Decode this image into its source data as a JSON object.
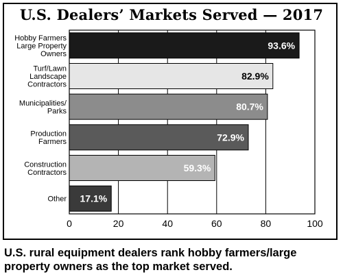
{
  "chart_data": {
    "type": "bar",
    "orientation": "horizontal",
    "title": "U.S. Dealers’ Markets Served — 2017",
    "categories": [
      [
        "Hobby Farmers",
        "Large Property",
        "Owners"
      ],
      [
        "Turf/Lawn",
        "Landscape",
        "Contractors"
      ],
      [
        "Municipalities/",
        "Parks"
      ],
      [
        "Production",
        "Farmers"
      ],
      [
        "Construction",
        "Contractors"
      ],
      [
        "Other"
      ]
    ],
    "values": [
      93.6,
      82.9,
      80.7,
      72.9,
      59.3,
      17.1
    ],
    "value_labels": [
      "93.6%",
      "82.9%",
      "80.7%",
      "72.9%",
      "59.3%",
      "17.1%"
    ],
    "bar_colors": [
      "#1a1a1a",
      "#e6e6e6",
      "#8c8c8c",
      "#5a5a5a",
      "#b4b4b4",
      "#3a3a3a"
    ],
    "label_colors": [
      "#ffffff",
      "#000000",
      "#ffffff",
      "#ffffff",
      "#ffffff",
      "#ffffff"
    ],
    "xlim": [
      0,
      100
    ],
    "xticks": [
      0,
      20,
      40,
      60,
      80,
      100
    ],
    "grid": "vertical"
  },
  "caption": "U.S. rural equipment dealers rank hobby farmers/large property owners as the top market served."
}
